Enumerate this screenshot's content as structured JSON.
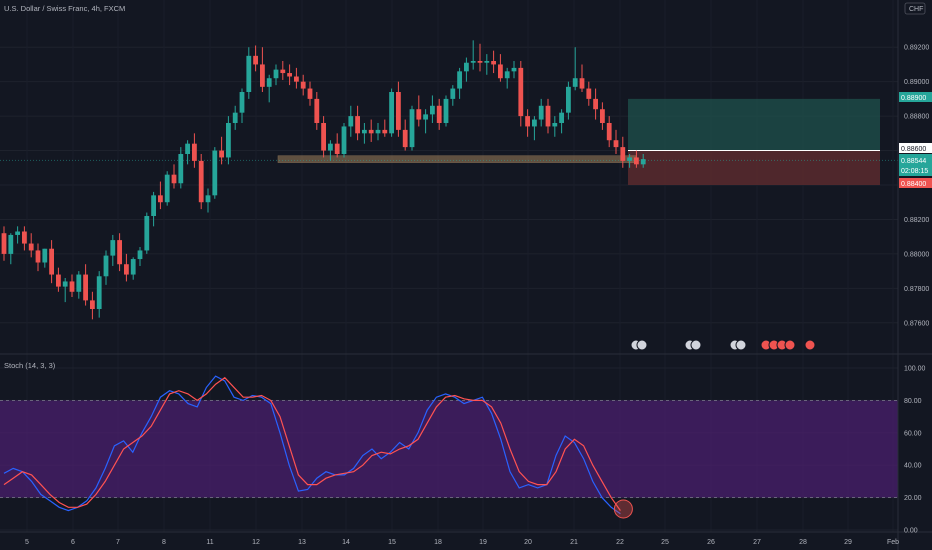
{
  "header": {
    "title": "U.S. Dollar / Swiss Franc, 4h, FXCM",
    "currency_badge": "CHF"
  },
  "colors": {
    "background": "#131722",
    "bull": "#26a69a",
    "bear": "#ef5350",
    "stoch_k": "#2962ff",
    "stoch_d": "#ff5252",
    "stoch_band": "#4a1f6e",
    "target_zone": "#1e4d4a",
    "stop_zone": "#5a2a2e",
    "support_zone": "#a0805a"
  },
  "price_tags": {
    "target": "0.88900",
    "entry": "0.88600",
    "current": "0.88544",
    "countdown": "02:08:15",
    "stop": "0.88400"
  },
  "stoch": {
    "label": "Stoch (14, 3, 3)"
  },
  "chart_data": [
    {
      "type": "candlestick",
      "title": "U.S. Dollar / Swiss Franc, 4h, FXCM",
      "xlabel": "",
      "ylabel": "",
      "ylim": [
        0.875,
        0.893
      ],
      "y_ticks": [
        "0.89200",
        "0.89000",
        "0.88800",
        "0.88600",
        "0.88400",
        "0.88200",
        "0.88000",
        "0.87800",
        "0.87600"
      ],
      "x_ticks": [
        "5",
        "6",
        "7",
        "8",
        "11",
        "12",
        "13",
        "14",
        "15",
        "18",
        "19",
        "20",
        "21",
        "22",
        "25",
        "26",
        "27",
        "28",
        "29",
        "Feb"
      ],
      "support_zone": [
        0.8853,
        0.8857
      ],
      "position": {
        "target": 0.889,
        "entry": 0.886,
        "stop": 0.884
      },
      "candles": [
        [
          0.8812,
          0.8816,
          0.8796,
          0.88
        ],
        [
          0.88,
          0.8812,
          0.8794,
          0.8811
        ],
        [
          0.8811,
          0.8816,
          0.8806,
          0.8813
        ],
        [
          0.8813,
          0.8816,
          0.8802,
          0.8806
        ],
        [
          0.8806,
          0.8812,
          0.8798,
          0.8802
        ],
        [
          0.8802,
          0.8806,
          0.879,
          0.8795
        ],
        [
          0.8795,
          0.8803,
          0.8792,
          0.8803
        ],
        [
          0.8803,
          0.8808,
          0.8783,
          0.8788
        ],
        [
          0.8788,
          0.8792,
          0.8778,
          0.8781
        ],
        [
          0.8781,
          0.8786,
          0.8772,
          0.8784
        ],
        [
          0.8784,
          0.8788,
          0.8775,
          0.8778
        ],
        [
          0.8778,
          0.879,
          0.8774,
          0.8788
        ],
        [
          0.8788,
          0.8794,
          0.877,
          0.8773
        ],
        [
          0.8773,
          0.8778,
          0.8762,
          0.8768
        ],
        [
          0.8768,
          0.879,
          0.8763,
          0.8787
        ],
        [
          0.8787,
          0.8802,
          0.8782,
          0.8799
        ],
        [
          0.8799,
          0.8811,
          0.8793,
          0.8808
        ],
        [
          0.8808,
          0.8812,
          0.879,
          0.8794
        ],
        [
          0.8794,
          0.88,
          0.8784,
          0.8788
        ],
        [
          0.8788,
          0.8798,
          0.8785,
          0.8797
        ],
        [
          0.8797,
          0.8804,
          0.8793,
          0.8802
        ],
        [
          0.8802,
          0.8824,
          0.88,
          0.8822
        ],
        [
          0.8822,
          0.8836,
          0.8816,
          0.8834
        ],
        [
          0.8834,
          0.8842,
          0.8826,
          0.883
        ],
        [
          0.883,
          0.8848,
          0.8828,
          0.8846
        ],
        [
          0.8846,
          0.8852,
          0.8838,
          0.8841
        ],
        [
          0.8841,
          0.8862,
          0.8838,
          0.8858
        ],
        [
          0.8858,
          0.8866,
          0.8852,
          0.8864
        ],
        [
          0.8864,
          0.887,
          0.885,
          0.8854
        ],
        [
          0.8854,
          0.8858,
          0.8826,
          0.883
        ],
        [
          0.883,
          0.8838,
          0.8824,
          0.8834
        ],
        [
          0.8834,
          0.8862,
          0.8832,
          0.886
        ],
        [
          0.886,
          0.8868,
          0.8852,
          0.8856
        ],
        [
          0.8856,
          0.888,
          0.8852,
          0.8876
        ],
        [
          0.8876,
          0.8886,
          0.8872,
          0.8882
        ],
        [
          0.8882,
          0.8896,
          0.8876,
          0.8894
        ],
        [
          0.8894,
          0.892,
          0.889,
          0.8915
        ],
        [
          0.8915,
          0.8921,
          0.8906,
          0.891
        ],
        [
          0.891,
          0.892,
          0.8894,
          0.8897
        ],
        [
          0.8897,
          0.8904,
          0.8888,
          0.8902
        ],
        [
          0.8902,
          0.891,
          0.8898,
          0.8907
        ],
        [
          0.8907,
          0.8912,
          0.8901,
          0.8905
        ],
        [
          0.8905,
          0.891,
          0.8898,
          0.8903
        ],
        [
          0.8903,
          0.8908,
          0.8896,
          0.89
        ],
        [
          0.89,
          0.8904,
          0.8892,
          0.8896
        ],
        [
          0.8896,
          0.89,
          0.8886,
          0.889
        ],
        [
          0.889,
          0.8894,
          0.8872,
          0.8876
        ],
        [
          0.8876,
          0.888,
          0.8856,
          0.886
        ],
        [
          0.886,
          0.8866,
          0.8854,
          0.8864
        ],
        [
          0.8864,
          0.887,
          0.8856,
          0.8858
        ],
        [
          0.8858,
          0.8876,
          0.8856,
          0.8874
        ],
        [
          0.8874,
          0.8886,
          0.8868,
          0.888
        ],
        [
          0.888,
          0.8886,
          0.8866,
          0.887
        ],
        [
          0.887,
          0.8876,
          0.8864,
          0.8872
        ],
        [
          0.8872,
          0.8878,
          0.8865,
          0.887
        ],
        [
          0.887,
          0.8876,
          0.8866,
          0.8872
        ],
        [
          0.8872,
          0.8878,
          0.8868,
          0.887
        ],
        [
          0.887,
          0.8896,
          0.8868,
          0.8894
        ],
        [
          0.8894,
          0.89,
          0.8868,
          0.8872
        ],
        [
          0.8872,
          0.8878,
          0.886,
          0.8862
        ],
        [
          0.8862,
          0.8886,
          0.886,
          0.8884
        ],
        [
          0.8884,
          0.8892,
          0.8874,
          0.8878
        ],
        [
          0.8878,
          0.8884,
          0.887,
          0.8881
        ],
        [
          0.8881,
          0.8892,
          0.8876,
          0.8886
        ],
        [
          0.8886,
          0.889,
          0.8872,
          0.8876
        ],
        [
          0.8876,
          0.8892,
          0.8874,
          0.889
        ],
        [
          0.889,
          0.8898,
          0.8886,
          0.8896
        ],
        [
          0.8896,
          0.8908,
          0.889,
          0.8906
        ],
        [
          0.8906,
          0.8914,
          0.89,
          0.8911
        ],
        [
          0.8911,
          0.8924,
          0.8907,
          0.8912
        ],
        [
          0.8912,
          0.8922,
          0.8906,
          0.8911
        ],
        [
          0.8911,
          0.8916,
          0.8904,
          0.8912
        ],
        [
          0.8912,
          0.8918,
          0.8905,
          0.891
        ],
        [
          0.891,
          0.8916,
          0.89,
          0.8902
        ],
        [
          0.8902,
          0.8908,
          0.8896,
          0.8906
        ],
        [
          0.8906,
          0.8912,
          0.8902,
          0.8908
        ],
        [
          0.8908,
          0.8912,
          0.8874,
          0.888
        ],
        [
          0.888,
          0.8884,
          0.8868,
          0.8874
        ],
        [
          0.8874,
          0.888,
          0.8866,
          0.8878
        ],
        [
          0.8878,
          0.889,
          0.8874,
          0.8886
        ],
        [
          0.8886,
          0.889,
          0.887,
          0.8874
        ],
        [
          0.8874,
          0.888,
          0.8868,
          0.8876
        ],
        [
          0.8876,
          0.8884,
          0.887,
          0.8882
        ],
        [
          0.8882,
          0.89,
          0.8878,
          0.8897
        ],
        [
          0.8897,
          0.892,
          0.8895,
          0.8902
        ],
        [
          0.8902,
          0.891,
          0.8894,
          0.8896
        ],
        [
          0.8896,
          0.89,
          0.8886,
          0.889
        ],
        [
          0.889,
          0.8896,
          0.8878,
          0.8884
        ],
        [
          0.8884,
          0.8888,
          0.8872,
          0.8876
        ],
        [
          0.8876,
          0.888,
          0.8862,
          0.8866
        ],
        [
          0.8866,
          0.8872,
          0.8858,
          0.8862
        ],
        [
          0.8862,
          0.8868,
          0.885,
          0.8854
        ],
        [
          0.8854,
          0.8858,
          0.885,
          0.8856
        ],
        [
          0.8856,
          0.886,
          0.885,
          0.8852
        ],
        [
          0.8852,
          0.8858,
          0.885,
          0.8855
        ]
      ]
    },
    {
      "type": "line",
      "title": "Stoch (14, 3, 3)",
      "xlabel": "",
      "ylabel": "",
      "ylim": [
        0,
        100
      ],
      "y_ticks": [
        "100.00",
        "80.00",
        "60.00",
        "40.00",
        "20.00",
        "0.00"
      ],
      "band": [
        20,
        80
      ],
      "series": [
        {
          "values": [
            35,
            38,
            36,
            30,
            22,
            18,
            14,
            12,
            14,
            18,
            26,
            38,
            52,
            55,
            48,
            60,
            70,
            82,
            86,
            84,
            78,
            76,
            88,
            95,
            92,
            82,
            80,
            83,
            82,
            78,
            60,
            40,
            24,
            25,
            32,
            36,
            34,
            34,
            38,
            46,
            50,
            44,
            48,
            54,
            50,
            60,
            74,
            82,
            84,
            82,
            78,
            80,
            82,
            72,
            56,
            36,
            26,
            28,
            26,
            28,
            46,
            58,
            54,
            44,
            30,
            20,
            14,
            10
          ]
        },
        {
          "values": [
            28,
            32,
            36,
            34,
            28,
            22,
            17,
            14,
            14,
            16,
            22,
            30,
            40,
            50,
            54,
            58,
            64,
            74,
            84,
            86,
            84,
            80,
            84,
            90,
            94,
            88,
            82,
            82,
            83,
            80,
            70,
            52,
            34,
            28,
            28,
            32,
            34,
            35,
            36,
            40,
            46,
            48,
            47,
            50,
            52,
            56,
            66,
            76,
            82,
            83,
            81,
            80,
            80,
            76,
            66,
            50,
            36,
            30,
            28,
            28,
            36,
            50,
            56,
            52,
            40,
            30,
            20,
            12
          ]
        }
      ]
    }
  ]
}
